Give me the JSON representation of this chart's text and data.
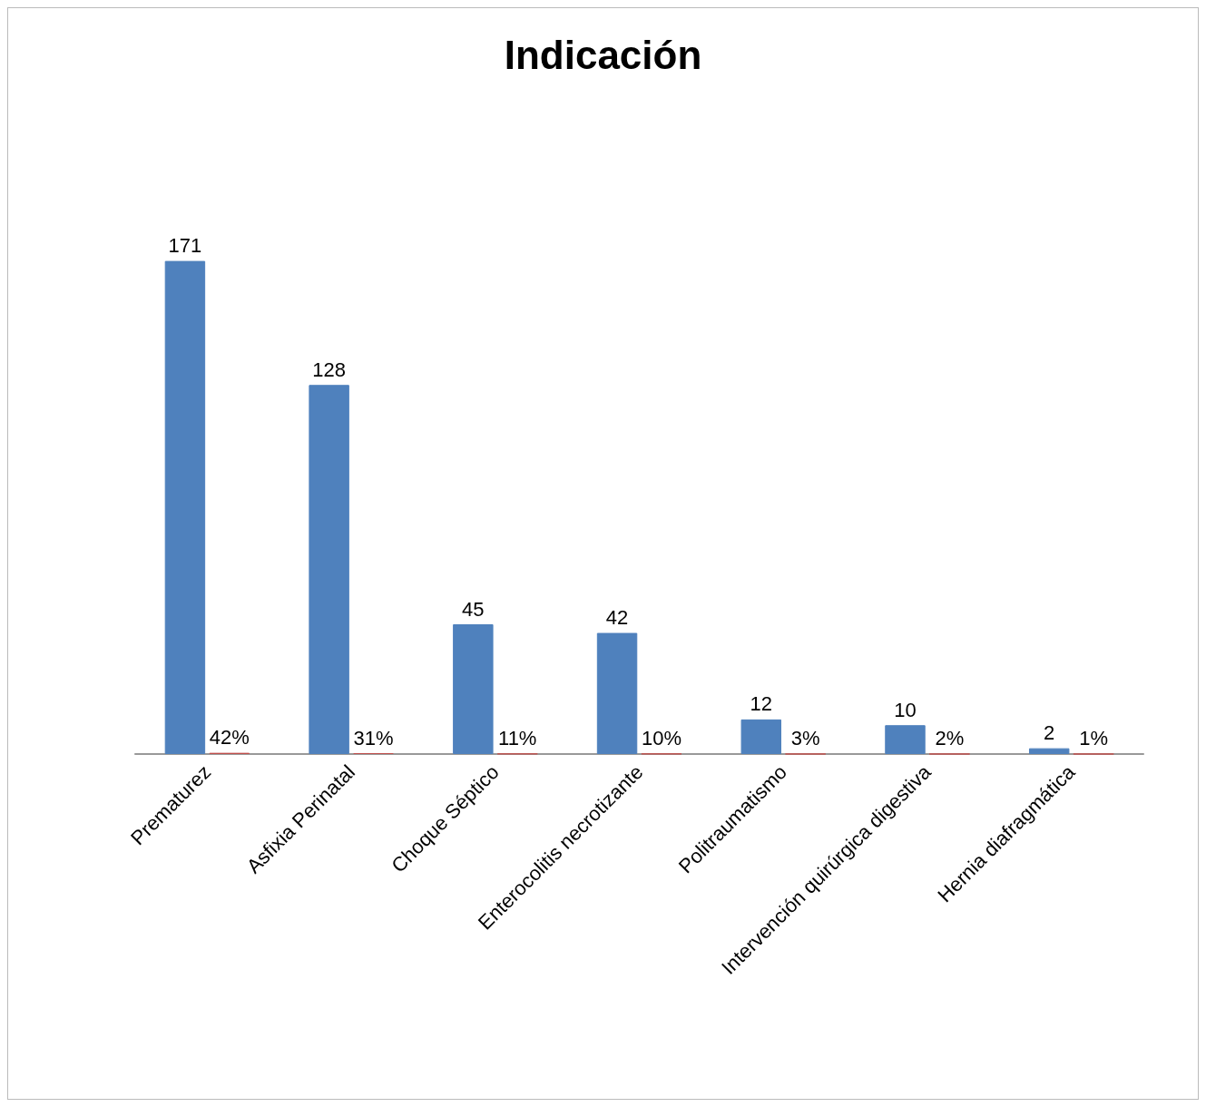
{
  "chart_data": {
    "type": "bar",
    "title": "Indicación",
    "categories": [
      "Prematurez",
      "Asfixia Perinatal",
      "Choque Séptico",
      "Enterocolitis necrotizante",
      "Politraumatismo",
      "Intervención quirúrgica digestiva",
      "Hernia diafragmática"
    ],
    "series": [
      {
        "color": "#4f81bd",
        "values": [
          171,
          128,
          45,
          42,
          12,
          10,
          2
        ],
        "value_labels": [
          "171",
          "128",
          "45",
          "42",
          "12",
          "10",
          "2"
        ]
      },
      {
        "color": "#c0504d",
        "values": [
          0.42,
          0.31,
          0.11,
          0.1,
          0.03,
          0.02,
          0.01
        ],
        "value_labels": [
          "42%",
          "31%",
          "11%",
          "10%",
          "3%",
          "2%",
          "1%"
        ]
      }
    ],
    "stacked": false
  }
}
